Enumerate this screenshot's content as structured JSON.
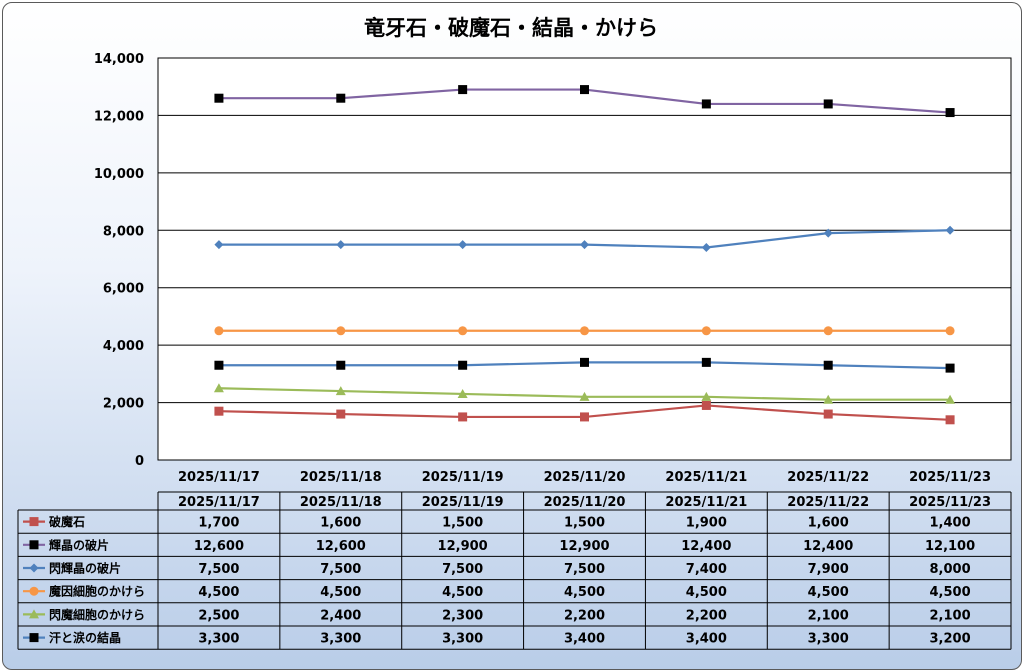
{
  "chart_data": {
    "type": "line",
    "title": "竜牙石・破魔石・結晶・かけら",
    "xlabel": "",
    "ylabel": "",
    "categories": [
      "2025/11/17",
      "2025/11/18",
      "2025/11/19",
      "2025/11/20",
      "2025/11/21",
      "2025/11/22",
      "2025/11/23"
    ],
    "y_ticks": [
      "0",
      "2,000",
      "4,000",
      "6,000",
      "8,000",
      "10,000",
      "12,000",
      "14,000"
    ],
    "ylim": [
      0,
      14000
    ],
    "grid": true,
    "legend": "data-table",
    "series": [
      {
        "name": "破魔石",
        "color": "#c0504d",
        "marker": "square",
        "values": [
          1700,
          1600,
          1500,
          1500,
          1900,
          1600,
          1400
        ],
        "labels": [
          "1,700",
          "1,600",
          "1,500",
          "1,500",
          "1,900",
          "1,600",
          "1,400"
        ]
      },
      {
        "name": "輝晶の破片",
        "color": "#8064a2",
        "marker": "square-black",
        "values": [
          12600,
          12600,
          12900,
          12900,
          12400,
          12400,
          12100
        ],
        "labels": [
          "12,600",
          "12,600",
          "12,900",
          "12,900",
          "12,400",
          "12,400",
          "12,100"
        ]
      },
      {
        "name": "閃輝晶の破片",
        "color": "#4f81bd",
        "marker": "diamond",
        "values": [
          7500,
          7500,
          7500,
          7500,
          7400,
          7900,
          8000
        ],
        "labels": [
          "7,500",
          "7,500",
          "7,500",
          "7,500",
          "7,400",
          "7,900",
          "8,000"
        ]
      },
      {
        "name": "魔因細胞のかけら",
        "color": "#f79646",
        "marker": "circle",
        "values": [
          4500,
          4500,
          4500,
          4500,
          4500,
          4500,
          4500
        ],
        "labels": [
          "4,500",
          "4,500",
          "4,500",
          "4,500",
          "4,500",
          "4,500",
          "4,500"
        ]
      },
      {
        "name": "閃魔細胞のかけら",
        "color": "#9bbb59",
        "marker": "triangle",
        "values": [
          2500,
          2400,
          2300,
          2200,
          2200,
          2100,
          2100
        ],
        "labels": [
          "2,500",
          "2,400",
          "2,300",
          "2,200",
          "2,200",
          "2,100",
          "2,100"
        ]
      },
      {
        "name": "汗と涙の結晶",
        "color": "#4f81bd",
        "marker": "square-black",
        "values": [
          3300,
          3300,
          3300,
          3400,
          3400,
          3300,
          3200
        ],
        "labels": [
          "3,300",
          "3,300",
          "3,300",
          "3,400",
          "3,400",
          "3,300",
          "3,200"
        ]
      }
    ]
  }
}
